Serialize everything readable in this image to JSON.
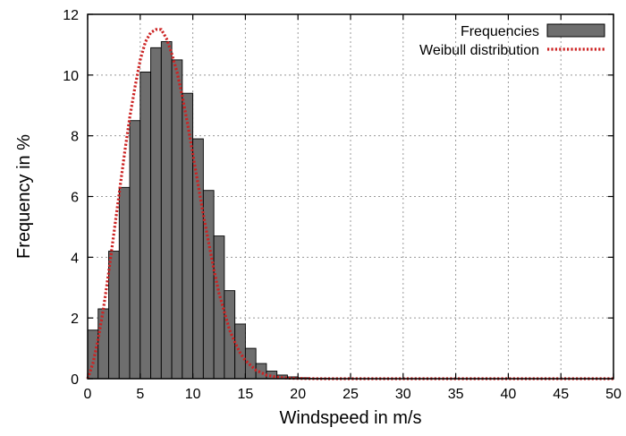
{
  "chart_data": {
    "type": "bar",
    "xlabel": "Windspeed in m/s",
    "ylabel": "Frequency in %",
    "xlim": [
      0,
      50
    ],
    "ylim": [
      0,
      12
    ],
    "x_ticks": [
      0,
      5,
      10,
      15,
      20,
      25,
      30,
      35,
      40,
      45,
      50
    ],
    "y_ticks": [
      0,
      2,
      4,
      6,
      8,
      10,
      12
    ],
    "grid": true,
    "legend_position": "top-right",
    "series": [
      {
        "name": "Frequencies",
        "type": "bar",
        "color": "#6e6e6e",
        "bin_width": 1,
        "bins_start": [
          0,
          1,
          2,
          3,
          4,
          5,
          6,
          7,
          8,
          9,
          10,
          11,
          12,
          13,
          14,
          15,
          16,
          17,
          18,
          19,
          20,
          21,
          22,
          23,
          24,
          25,
          26,
          27,
          28,
          29,
          30,
          31,
          32,
          33,
          34,
          35,
          36,
          37,
          38,
          39,
          40,
          41,
          42,
          43,
          44,
          45,
          46,
          47,
          48,
          49
        ],
        "values": [
          1.6,
          2.3,
          4.2,
          6.3,
          8.5,
          10.1,
          10.9,
          11.1,
          10.5,
          9.4,
          7.9,
          6.2,
          4.7,
          2.9,
          1.8,
          1.0,
          0.5,
          0.25,
          0.12,
          0.06,
          0.03,
          0.01,
          0.01,
          0.0,
          0.0,
          0.0,
          0.0,
          0.0,
          0.0,
          0.0,
          0.0,
          0.0,
          0.0,
          0.0,
          0.0,
          0.0,
          0.0,
          0.0,
          0.0,
          0.0,
          0.0,
          0.0,
          0.0,
          0.0,
          0.0,
          0.0,
          0.0,
          0.0,
          0.0,
          0.0
        ]
      },
      {
        "name": "Weibull distribution",
        "type": "line",
        "style": "dotted",
        "color": "#cc2222",
        "x": [
          0,
          0.5,
          1,
          1.5,
          2,
          2.5,
          3,
          3.5,
          4,
          4.5,
          5,
          5.5,
          6,
          6.5,
          7,
          7.5,
          8,
          8.5,
          9,
          9.5,
          10,
          10.5,
          11,
          11.5,
          12,
          12.5,
          13,
          13.5,
          14,
          14.5,
          15,
          16,
          17,
          18,
          19,
          20,
          22,
          25,
          30,
          35,
          40,
          45,
          50
        ],
        "y": [
          0.0,
          0.5,
          1.3,
          2.3,
          3.5,
          4.8,
          6.1,
          7.4,
          8.6,
          9.6,
          10.5,
          11.1,
          11.4,
          11.5,
          11.5,
          11.2,
          10.7,
          10.1,
          9.3,
          8.4,
          7.4,
          6.4,
          5.4,
          4.5,
          3.6,
          2.8,
          2.2,
          1.6,
          1.2,
          0.85,
          0.6,
          0.28,
          0.12,
          0.05,
          0.02,
          0.01,
          0.0,
          0.0,
          0.0,
          0.0,
          0.0,
          0.0,
          0.0
        ]
      }
    ]
  }
}
